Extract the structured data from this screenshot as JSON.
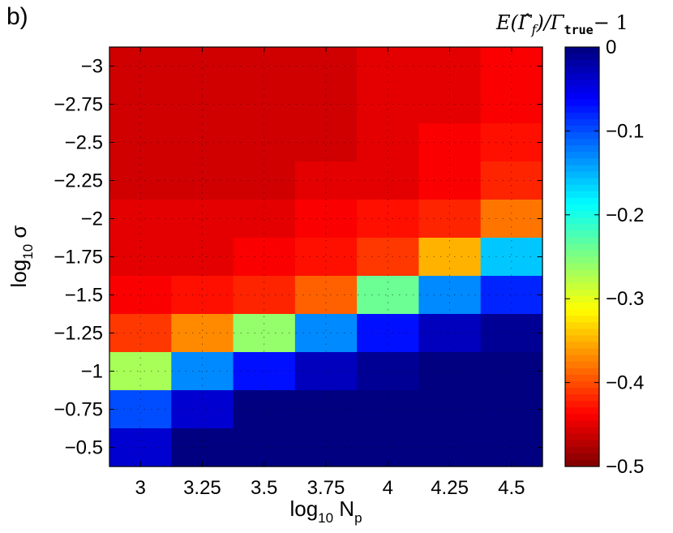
{
  "panel_label": "b)",
  "colorbar": {
    "title": "E(Γ̂_f)/Γ_true − 1",
    "title_parts": {
      "e": "E(",
      "gamma_hat": "Γ̂",
      "f": "f",
      "mid": ")/Γ",
      "true": "true",
      "tail": "− 1"
    },
    "ticks": [
      "0",
      "−0.1",
      "−0.2",
      "−0.3",
      "−0.4",
      "−0.5"
    ],
    "tick_values": [
      0,
      -0.1,
      -0.2,
      -0.3,
      -0.4,
      -0.5
    ],
    "range": [
      -0.5,
      0
    ],
    "colormap": "jet"
  },
  "chart_data": {
    "type": "heatmap",
    "title": "",
    "xlabel": "log10 Np",
    "xlabel_parts": {
      "base": "log",
      "sub": "10",
      "var": " N",
      "var_sub": "p"
    },
    "ylabel": "log10 σ",
    "ylabel_parts": {
      "base": "log",
      "sub": "10",
      "var": " σ"
    },
    "x": [
      3,
      3.25,
      3.5,
      3.75,
      4,
      4.25,
      4.5
    ],
    "x_tick_labels": [
      "3",
      "3.25",
      "3.5",
      "3.75",
      "4",
      "4.25",
      "4.5"
    ],
    "y": [
      -3,
      -2.75,
      -2.5,
      -2.25,
      -2,
      -1.75,
      -1.5,
      -1.25,
      -1,
      -0.75,
      -0.5
    ],
    "y_tick_labels": [
      "−3",
      "−2.75",
      "−2.5",
      "−2.25",
      "−2",
      "−1.75",
      "−1.5",
      "−1.25",
      "−1",
      "−0.75",
      "−0.5"
    ],
    "values": [
      [
        -0.46,
        -0.46,
        -0.46,
        -0.46,
        -0.45,
        -0.45,
        -0.44
      ],
      [
        -0.46,
        -0.46,
        -0.46,
        -0.46,
        -0.45,
        -0.45,
        -0.44
      ],
      [
        -0.46,
        -0.46,
        -0.46,
        -0.46,
        -0.45,
        -0.44,
        -0.43
      ],
      [
        -0.46,
        -0.46,
        -0.46,
        -0.45,
        -0.45,
        -0.44,
        -0.42
      ],
      [
        -0.45,
        -0.45,
        -0.45,
        -0.44,
        -0.43,
        -0.42,
        -0.38
      ],
      [
        -0.45,
        -0.45,
        -0.44,
        -0.43,
        -0.41,
        -0.35,
        -0.16
      ],
      [
        -0.44,
        -0.43,
        -0.42,
        -0.39,
        -0.24,
        -0.13,
        -0.08
      ],
      [
        -0.41,
        -0.37,
        -0.26,
        -0.13,
        -0.07,
        -0.03,
        -0.01
      ],
      [
        -0.27,
        -0.13,
        -0.07,
        -0.03,
        -0.01,
        0.02,
        0.06
      ],
      [
        -0.1,
        -0.04,
        0.0,
        0.04,
        0.09,
        0.14,
        0.14
      ],
      [
        -0.04,
        0.01,
        0.04,
        0.08,
        0.14,
        0.14,
        0.14
      ]
    ],
    "zlim": [
      -0.5,
      0
    ],
    "grid": true,
    "grid_style": "dotted"
  }
}
